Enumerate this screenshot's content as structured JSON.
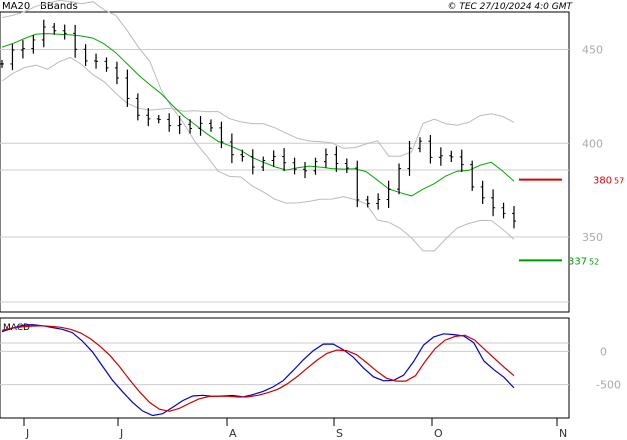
{
  "header": {
    "legend_ma": "MA20",
    "legend_bb": "BBands",
    "source": "© TEC 27/10/2024 4:0 GMT"
  },
  "colors": {
    "price": "#000000",
    "ma": "#00aa00",
    "bands": "#bbbbbb",
    "resistance": "#dd0000",
    "support": "#009900",
    "macd": "#0000cc",
    "signal": "#cc0000",
    "grid": "#cccccc",
    "frame": "#000000",
    "label": "#aaaaaa"
  },
  "macd_panel": {
    "title": "MACD"
  },
  "levels": [
    {
      "name": "resistance",
      "value": 380.57,
      "int": "380",
      "dec": "57"
    },
    {
      "name": "support",
      "value": 337.52,
      "int": "337",
      "dec": "52"
    }
  ],
  "chart_data": [
    {
      "type": "line",
      "title": "",
      "xlabel": "",
      "ylabel": "",
      "ylim": [
        310,
        470
      ],
      "yticks": [
        {
          "label": "450",
          "value": 450
        },
        {
          "label": "400",
          "value": 400
        },
        {
          "label": "350",
          "value": 350
        }
      ],
      "xticks": [
        "J",
        "J",
        "A",
        "S",
        "O",
        "N"
      ],
      "series": [
        {
          "name": "MA20",
          "role": "ma",
          "values": [
            451.3,
            453.3,
            455.9,
            458.2,
            458.5,
            458.1,
            457.8,
            457.2,
            456.1,
            452.9,
            448.3,
            442.3,
            436.4,
            431.2,
            426.4,
            420.1,
            414.3,
            409.8,
            405.1,
            401.0,
            398.7,
            396.2,
            392.4,
            389.8,
            387.4,
            385.7,
            386.9,
            387.8,
            387.3,
            386.5,
            386.2,
            386.4,
            384.9,
            380.3,
            375.6,
            373.6,
            371.9,
            375.5,
            378.5,
            382.5,
            385.1,
            385.5,
            388.2,
            389.9,
            385.2,
            379.7
          ]
        },
        {
          "name": "BBands",
          "role": "band_upper",
          "values": [
            467.0,
            468.3,
            470.2,
            473.1,
            474.5,
            476.2,
            475.6,
            474.4,
            475.5,
            471.1,
            468.2,
            460.1,
            451.2,
            443.6,
            428.3,
            418.3,
            417.1,
            417.3,
            416.9,
            416.9,
            413.1,
            411.4,
            410.5,
            410.4,
            408.2,
            405.3,
            402.6,
            401.2,
            400.9,
            400.2,
            397.3,
            397.7,
            399.6,
            401.3,
            393.1,
            393.1,
            395.4,
            410.6,
            412.8,
            410.4,
            409.6,
            411.1,
            414.7,
            415.7,
            414.3,
            411.1
          ]
        },
        {
          "role": "band_lower",
          "values": [
            433.2,
            437.4,
            440.4,
            441.6,
            439.5,
            443.4,
            445.8,
            442.0,
            436.5,
            432.7,
            426.7,
            421.3,
            418.7,
            417.7,
            418.2,
            418.8,
            410.4,
            400.5,
            393.2,
            385.1,
            382.3,
            382.0,
            377.2,
            373.9,
            370.1,
            368.1,
            368.2,
            369.0,
            370.1,
            370.2,
            371.5,
            370.0,
            367.7,
            359.0,
            357.9,
            354.6,
            349.5,
            342.6,
            342.6,
            349.0,
            354.8,
            357.2,
            358.8,
            358.8,
            354.2,
            348.7
          ]
        },
        {
          "name": "Price",
          "role": "price",
          "values": [
            442.3,
            449.7,
            450.5,
            455.1,
            462.0,
            460.0,
            458.6,
            450.1,
            443.9,
            443.7,
            440.2,
            434.8,
            423.9,
            414.9,
            413.0,
            412.7,
            409.4,
            410.1,
            407.9,
            410.6,
            408.2,
            400.7,
            393.9,
            392.9,
            387.3,
            390.8,
            392.9,
            389.6,
            386.1,
            385.3,
            390.2,
            393.9,
            389.2,
            386.8,
            369.8,
            367.9,
            370.0,
            375.5,
            386.5,
            397.3,
            401.1,
            392.5,
            393.3,
            392.7,
            388.6,
            376.7,
            370.9,
            365.6,
            362.6,
            358.5
          ]
        }
      ]
    },
    {
      "type": "line",
      "title": "MACD",
      "xlabel": "",
      "ylabel": "",
      "ylim": [
        -1000,
        500
      ],
      "yticks": [
        {
          "label": "0",
          "value": 0
        },
        {
          "label": "-500",
          "value": -500
        }
      ],
      "series": [
        {
          "name": "MACD",
          "role": "macd",
          "values": [
            294,
            346,
            388,
            401,
            385,
            357,
            330,
            281,
            155,
            -7,
            -220,
            -433,
            -605,
            -764,
            -893,
            -962,
            -936,
            -839,
            -739,
            -670,
            -659,
            -674,
            -670,
            -662,
            -683,
            -649,
            -601,
            -534,
            -441,
            -289,
            -129,
            10,
            109,
            109,
            24,
            -89,
            -249,
            -382,
            -442,
            -436,
            -358,
            -153,
            95,
            216,
            263,
            251,
            230,
            128,
            -145,
            -276,
            -389,
            -548
          ]
        },
        {
          "name": "Signal",
          "role": "signal",
          "values": [
            316,
            348,
            366,
            379,
            383,
            376,
            360,
            329,
            275,
            186,
            70,
            -67,
            -242,
            -434,
            -611,
            -768,
            -868,
            -899,
            -856,
            -782,
            -713,
            -678,
            -671,
            -675,
            -685,
            -683,
            -659,
            -621,
            -569,
            -486,
            -376,
            -253,
            -132,
            -31,
            19,
            11,
            -51,
            -166,
            -291,
            -398,
            -447,
            -446,
            -366,
            -147,
            42,
            169,
            222,
            242,
            170,
            31,
            -104,
            -240,
            -366
          ]
        }
      ]
    }
  ]
}
